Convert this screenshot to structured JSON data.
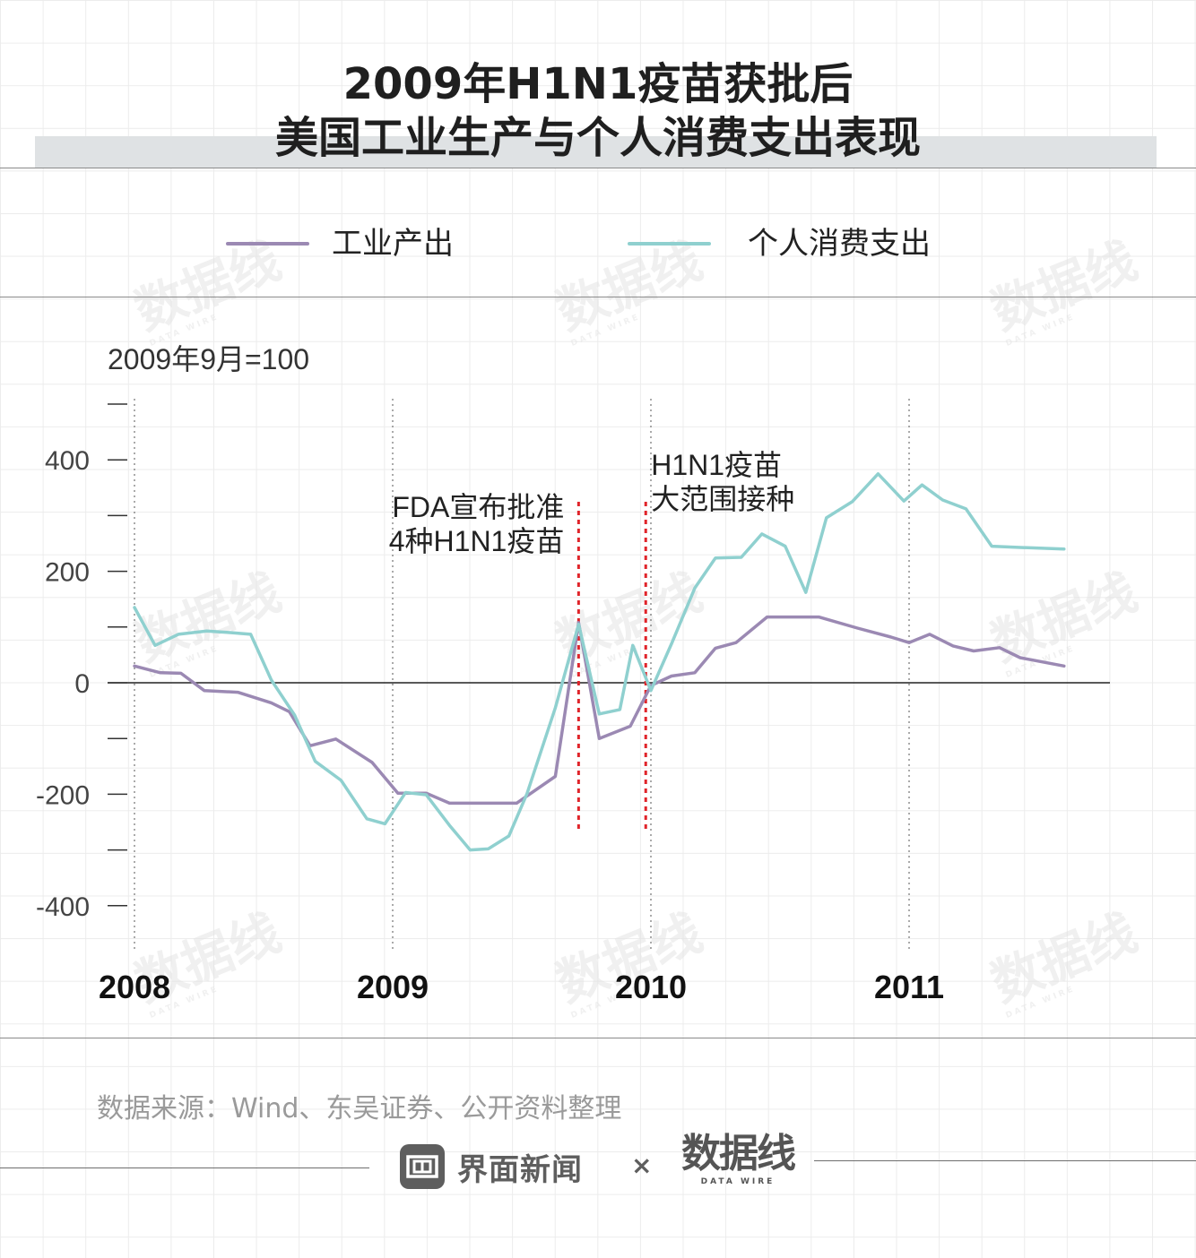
{
  "title_line1": "2009年H1N1疫苗获批后",
  "title_line2": "美国工业生产与个人消费支出表现",
  "legend": [
    {
      "label": "工业产出",
      "color": "#9b89b3"
    },
    {
      "label": "个人消费支出",
      "color": "#8fd0cf"
    }
  ],
  "source": "数据来源：Wind、东吴证券、公开资料整理",
  "brand": {
    "name": "界面新闻",
    "times": "×",
    "partner": "数据线",
    "partner_sub": "DATA WIRE",
    "logo_icon": "jiemian-logo-icon"
  },
  "watermark": {
    "main": "数据线",
    "sub": "DATA WIRE"
  },
  "chart_data": {
    "type": "line",
    "ylabel": "2009年9月=100",
    "ylim": [
      -500,
      500
    ],
    "y_ticks": [
      -400,
      -200,
      0,
      200,
      400
    ],
    "y_tick_labels": [
      "-400",
      "-200",
      "0",
      "200",
      "400"
    ],
    "x_range": [
      2008.0,
      2011.9
    ],
    "x_tick_labels": [
      {
        "x": 2008,
        "label": "2008"
      },
      {
        "x": 2009,
        "label": "2009"
      },
      {
        "x": 2010,
        "label": "2010"
      },
      {
        "x": 2011,
        "label": "2011"
      }
    ],
    "annotations": [
      {
        "x": 2009.72,
        "lines": [
          "FDA宣布批准",
          "4种H1N1疫苗"
        ],
        "align": "right"
      },
      {
        "x": 2009.98,
        "lines": [
          "H1N1疫苗",
          "大范围接种"
        ],
        "align": "left"
      }
    ],
    "series": [
      {
        "name": "工业产出",
        "color": "#9b89b3",
        "x": [
          2008.0,
          2008.1,
          2008.18,
          2008.27,
          2008.4,
          2008.53,
          2008.6,
          2008.68,
          2008.78,
          2008.92,
          2009.02,
          2009.13,
          2009.22,
          2009.35,
          2009.48,
          2009.63,
          2009.72,
          2009.8,
          2009.92,
          2010.0,
          2010.08,
          2010.17,
          2010.25,
          2010.33,
          2010.45,
          2010.65,
          2010.8,
          2010.93,
          2011.0,
          2011.08,
          2011.17,
          2011.25,
          2011.35,
          2011.43,
          2011.6
        ],
        "y": [
          30,
          18,
          17,
          -14,
          -17,
          -36,
          -52,
          -113,
          -101,
          -143,
          -198,
          -198,
          -216,
          -216,
          -216,
          -168,
          108,
          -100,
          -78,
          -5,
          12,
          18,
          62,
          72,
          118,
          118,
          98,
          82,
          72,
          87,
          66,
          57,
          63,
          45,
          30
        ]
      },
      {
        "name": "个人消费支出",
        "color": "#8fd0cf",
        "x": [
          2008.0,
          2008.08,
          2008.17,
          2008.28,
          2008.37,
          2008.45,
          2008.53,
          2008.62,
          2008.7,
          2008.8,
          2008.9,
          2008.97,
          2009.05,
          2009.13,
          2009.22,
          2009.3,
          2009.37,
          2009.45,
          2009.52,
          2009.63,
          2009.72,
          2009.8,
          2009.88,
          2009.93,
          2010.0,
          2010.08,
          2010.17,
          2010.25,
          2010.35,
          2010.43,
          2010.52,
          2010.6,
          2010.68,
          2010.78,
          2010.88,
          2010.98,
          2011.05,
          2011.13,
          2011.22,
          2011.32,
          2011.42,
          2011.6
        ],
        "y": [
          135,
          67,
          87,
          93,
          90,
          87,
          5,
          -58,
          -141,
          -175,
          -244,
          -253,
          -197,
          -201,
          -256,
          -300,
          -298,
          -275,
          -199,
          -45,
          105,
          -56,
          -48,
          67,
          -14,
          70,
          170,
          224,
          225,
          267,
          245,
          162,
          296,
          325,
          375,
          326,
          355,
          328,
          312,
          245,
          243,
          240
        ]
      }
    ]
  }
}
